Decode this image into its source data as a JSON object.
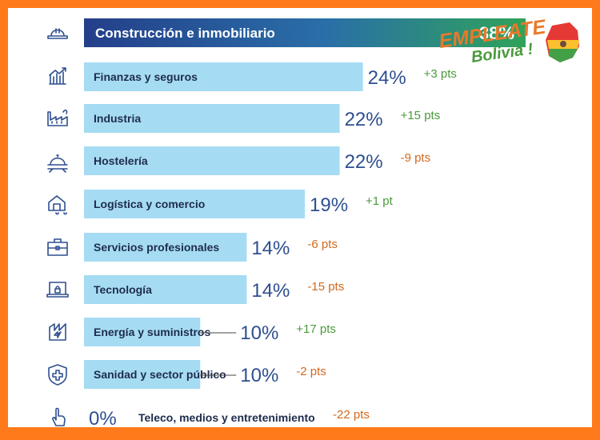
{
  "chart_data": {
    "type": "bar",
    "orientation": "horizontal",
    "xlim": [
      0,
      38
    ],
    "categories": [
      "Construcción e inmobiliario",
      "Finanzas y seguros",
      "Industria",
      "Hostelería",
      "Logística y comercio",
      "Servicios profesionales",
      "Tecnología",
      "Energía y suministros",
      "Sanidad y sector público",
      "Teleco, medios y entretenimiento"
    ],
    "values": [
      38,
      24,
      22,
      22,
      19,
      14,
      14,
      10,
      10,
      0
    ],
    "value_labels": [
      "38%",
      "24%",
      "22%",
      "22%",
      "19%",
      "14%",
      "14%",
      "10%",
      "10%",
      "0%"
    ],
    "changes": [
      "",
      "+3 pts",
      "+15 pts",
      "-9 pts",
      "+1 pt",
      "-6 pts",
      "-15 pts",
      "+17 pts",
      "-2 pts",
      "-22 pts"
    ],
    "icons": [
      "hard-hat-icon",
      "finance-chart-icon",
      "factory-icon",
      "cloche-icon",
      "delivery-truck-icon",
      "briefcase-icon",
      "laptop-lock-icon",
      "energy-icon",
      "shield-cross-icon",
      "hand-pointer-icon"
    ],
    "colors": {
      "highlight_start": "#243f8a",
      "highlight_end": "#2fa35a",
      "bar": "#a6dcf3",
      "value_text": "#2e4f8f",
      "positive": "#4a9a3c",
      "negative": "#d2691e",
      "frame": "#ff7a1a"
    }
  },
  "watermark": {
    "line1": "EMPLEATE",
    "line2": "Bolivia !"
  }
}
